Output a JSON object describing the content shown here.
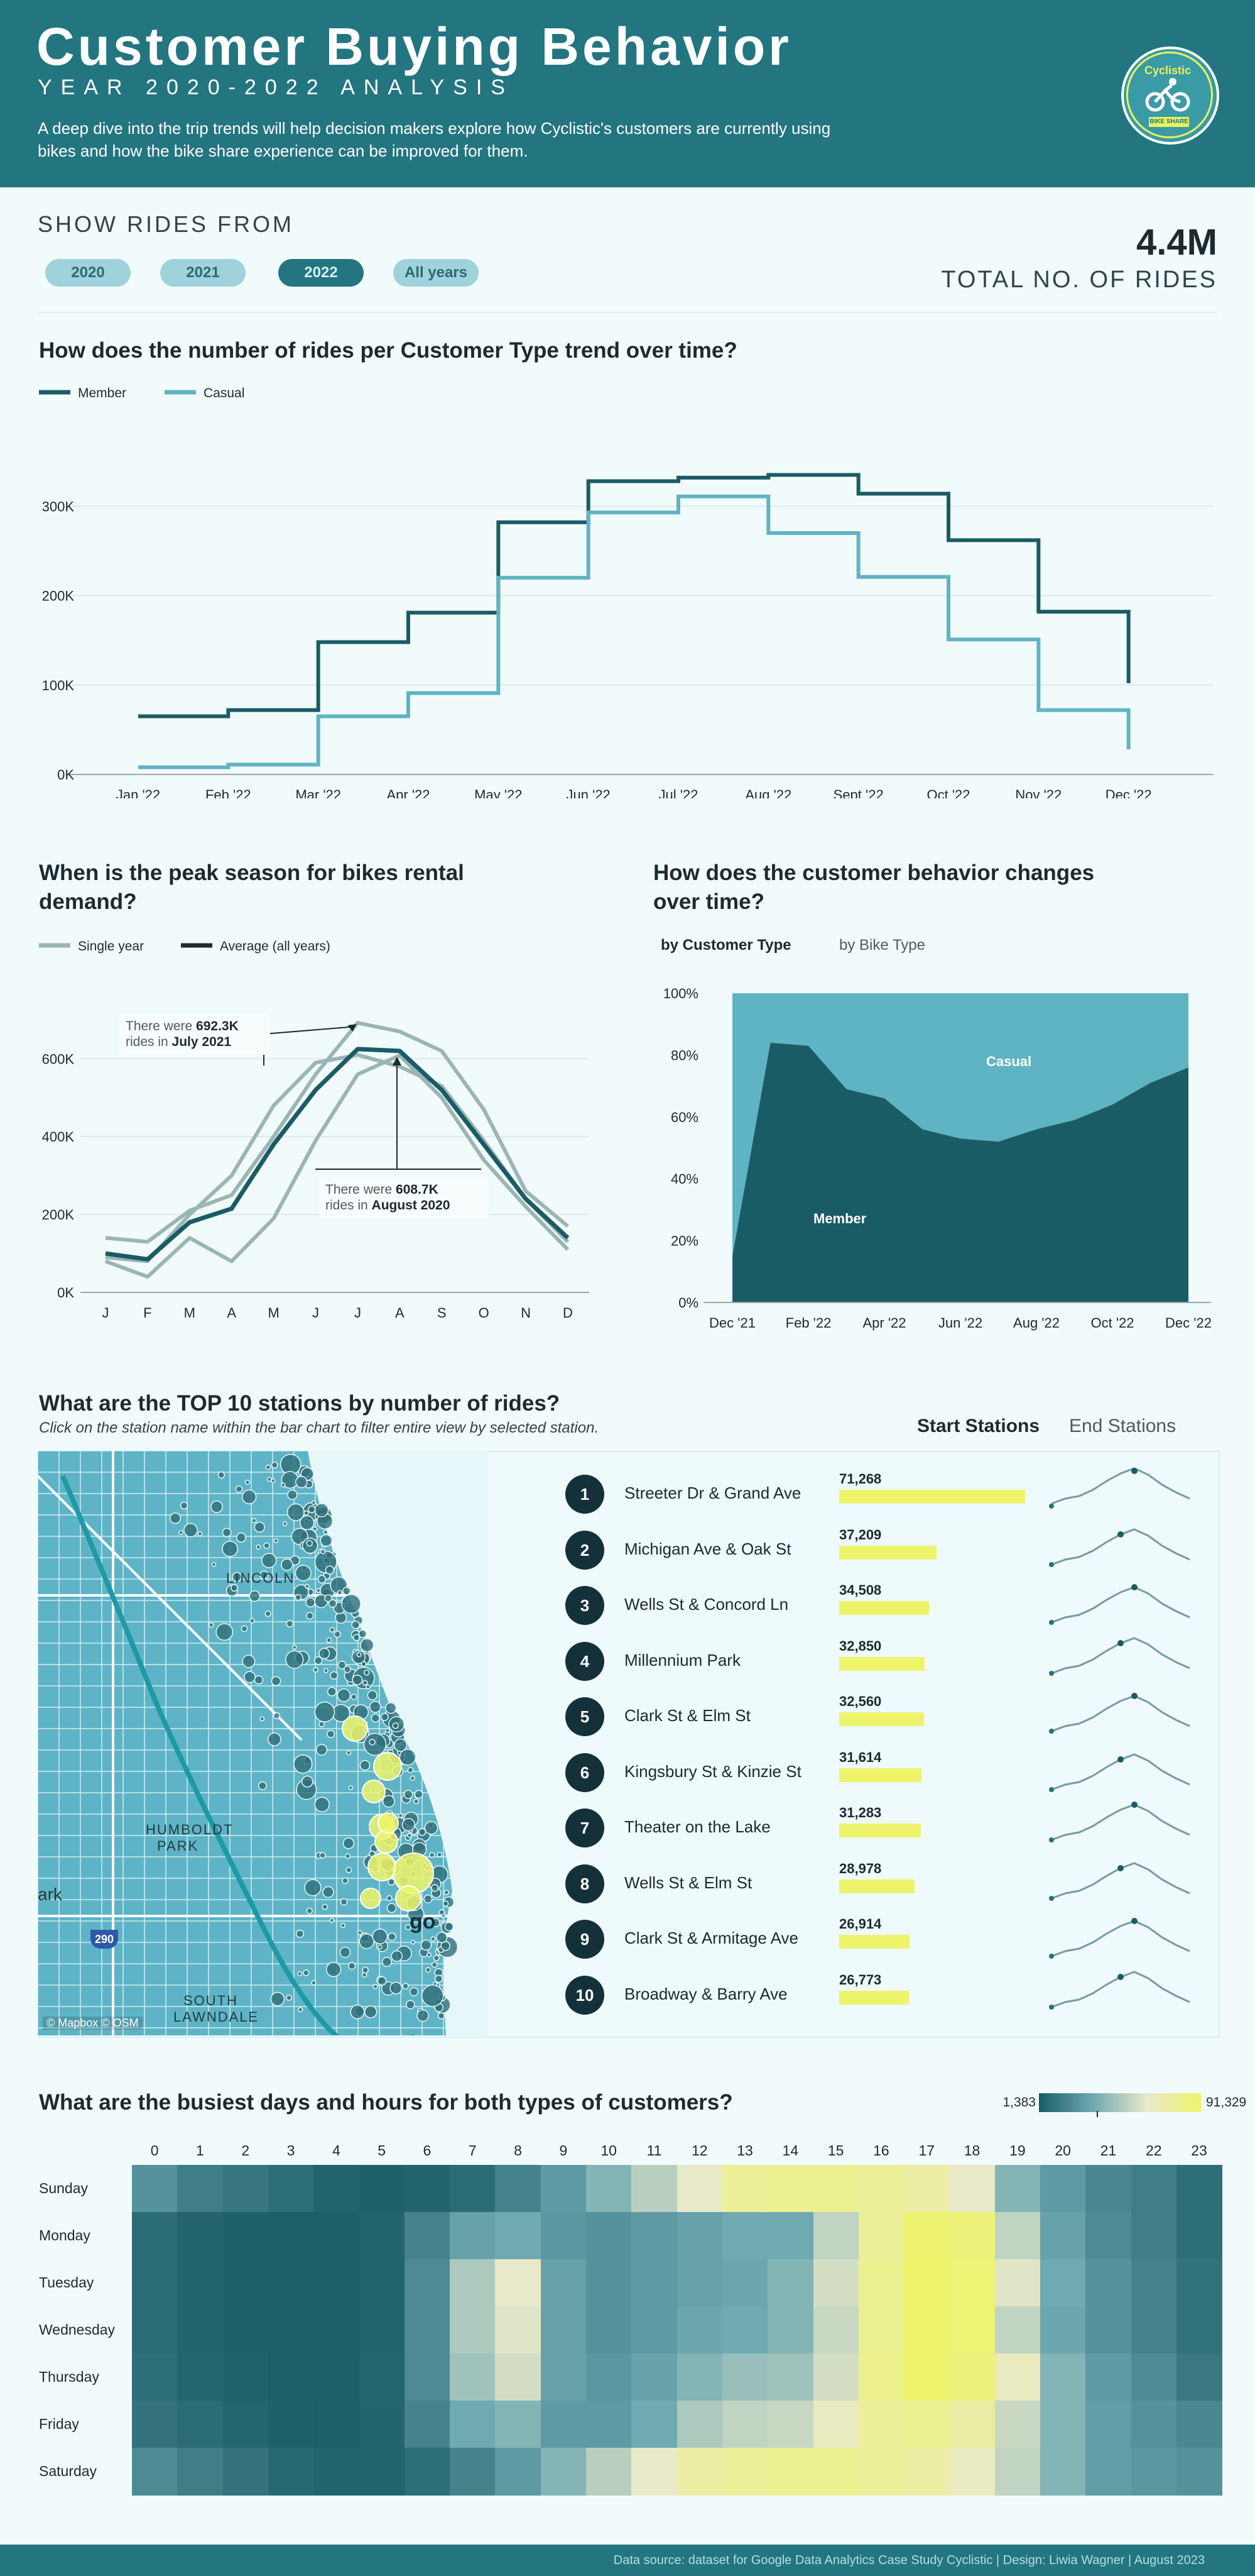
{
  "header": {
    "title": "Customer Buying Behavior",
    "subtitle": "YEAR 2020-2022 ANALYSIS",
    "description": "A deep dive into the trip trends will help decision makers explore how Cyclistic's customers are currently using bikes and how the bike share experience can be improved for them.",
    "logo_text": "Cyclistic",
    "logo_tag": "BIKE SHARE"
  },
  "filters": {
    "label": "SHOW RIDES FROM",
    "options": [
      {
        "label": "2020",
        "active": false
      },
      {
        "label": "2021",
        "active": false
      },
      {
        "label": "2022",
        "active": true
      },
      {
        "label": "All years",
        "active": false
      }
    ]
  },
  "kpi": {
    "value": "4.4M",
    "label": "TOTAL NO. OF RIDES"
  },
  "trend": {
    "title": "How does the number of rides per Customer Type trend over time?"
  },
  "peak": {
    "title_line1": "When is the peak season for bikes rental",
    "title_line2": "demand?",
    "ann1_pre": "There were ",
    "ann1_val": "692.3K",
    "ann1_mid": "rides in ",
    "ann1_month": "July 2021",
    "ann2_pre": "There were ",
    "ann2_val": "608.7K",
    "ann2_mid": "rides in ",
    "ann2_month": "August 2020"
  },
  "behavior": {
    "title_line1": "How does the customer behavior changes",
    "title_line2": "over time?",
    "tabs": [
      {
        "label": "by Customer Type",
        "active": true
      },
      {
        "label": "by Bike Type",
        "active": false
      }
    ]
  },
  "stations": {
    "title": "What are the TOP 10 stations by number of rides?",
    "subtitle": "Click on the station name within the bar chart to filter entire view by selected station.",
    "tabs": [
      {
        "label": "Start Stations",
        "active": true
      },
      {
        "label": "End Stations",
        "active": false
      }
    ],
    "map_credit": "© Mapbox © OSM",
    "map_labels": [
      "LINCOLN",
      "HUMBOLDT",
      "PARK",
      "ark",
      "go",
      "SOUTH",
      "LAWNDALE",
      "290"
    ],
    "rows": [
      {
        "rank": "1",
        "name": "Streeter Dr & Grand Ave",
        "value_label": "71,268",
        "value": 71268
      },
      {
        "rank": "2",
        "name": "Michigan Ave & Oak St",
        "value_label": "37,209",
        "value": 37209
      },
      {
        "rank": "3",
        "name": "Wells St & Concord Ln",
        "value_label": "34,508",
        "value": 34508
      },
      {
        "rank": "4",
        "name": "Millennium Park",
        "value_label": "32,850",
        "value": 32850
      },
      {
        "rank": "5",
        "name": "Clark St & Elm St",
        "value_label": "32,560",
        "value": 32560
      },
      {
        "rank": "6",
        "name": "Kingsbury St & Kinzie St",
        "value_label": "31,614",
        "value": 31614
      },
      {
        "rank": "7",
        "name": "Theater on the Lake",
        "value_label": "31,283",
        "value": 31283
      },
      {
        "rank": "8",
        "name": "Wells St & Elm St",
        "value_label": "28,978",
        "value": 28978
      },
      {
        "rank": "9",
        "name": "Clark St & Armitage Ave",
        "value_label": "26,914",
        "value": 26914
      },
      {
        "rank": "10",
        "name": "Broadway & Barry Ave",
        "value_label": "26,773",
        "value": 26773
      }
    ]
  },
  "heatmap": {
    "title": "What are the busiest days and hours for both types of customers?",
    "legend_min": "1,383",
    "legend_max": "91,329"
  },
  "footer": {
    "text": "Data source: dataset for Google Data Analytics Case Study Cyclistic | Design: Liwia Wagner | August 2023"
  },
  "colors": {
    "member": "#1a5c66",
    "casual": "#5fb4c3",
    "highlight": "#edf46b",
    "header": "#237580"
  },
  "chart_data": [
    {
      "type": "line",
      "id": "trend",
      "categories": [
        "Jan '22",
        "Feb '22",
        "Mar '22",
        "Apr '22",
        "May '22",
        "Jun '22",
        "Jul '22",
        "Aug '22",
        "Sept '22",
        "Oct '22",
        "Nov '22",
        "Dec '22"
      ],
      "series": [
        {
          "name": "Member",
          "values": [
            65000,
            72000,
            148000,
            181000,
            282000,
            328000,
            332000,
            335000,
            314000,
            262000,
            182000,
            102000
          ]
        },
        {
          "name": "Casual",
          "values": [
            8000,
            11000,
            65000,
            91000,
            220000,
            293000,
            311000,
            270000,
            221000,
            151000,
            72000,
            28000
          ]
        }
      ],
      "yticks": [
        "0K",
        "100K",
        "200K",
        "300K"
      ],
      "ylim": [
        0,
        360000
      ],
      "legend": "top-left",
      "step": true
    },
    {
      "type": "line",
      "id": "peak",
      "categories": [
        "J",
        "F",
        "M",
        "A",
        "M",
        "J",
        "J",
        "A",
        "S",
        "O",
        "N",
        "D"
      ],
      "series": [
        {
          "name": "Single year",
          "values": [
            80000,
            40000,
            140000,
            80000,
            190000,
            390000,
            560000,
            608700,
            500000,
            340000,
            220000,
            110000
          ]
        },
        {
          "name": "Single year",
          "values": [
            140000,
            130000,
            210000,
            250000,
            400000,
            560000,
            692300,
            670000,
            620000,
            470000,
            260000,
            170000
          ]
        },
        {
          "name": "Single year",
          "values": [
            90000,
            80000,
            200000,
            300000,
            480000,
            590000,
            610000,
            580000,
            530000,
            390000,
            240000,
            130000
          ]
        },
        {
          "name": "Average (all years)",
          "values": [
            100000,
            85000,
            180000,
            215000,
            380000,
            520000,
            625000,
            620000,
            520000,
            380000,
            240000,
            140000
          ]
        }
      ],
      "yticks": [
        "0K",
        "200K",
        "400K",
        "600K"
      ],
      "ylim": [
        0,
        720000
      ],
      "legend": "top-left"
    },
    {
      "type": "area",
      "id": "behavior",
      "x": [
        "Dec '21",
        "Jan '22",
        "Feb '22",
        "Mar '22",
        "Apr '22",
        "May '22",
        "Jun '22",
        "Jul '22",
        "Aug '22",
        "Sept '22",
        "Oct '22",
        "Nov '22",
        "Dec '22"
      ],
      "xticks": [
        "Dec '21",
        "Feb '22",
        "Apr '22",
        "Jun '22",
        "Aug '22",
        "Oct '22",
        "Dec '22"
      ],
      "series": [
        {
          "name": "Member",
          "values": [
            15,
            84,
            83,
            69,
            66,
            56,
            53,
            52,
            56,
            59,
            64,
            71,
            76
          ]
        },
        {
          "name": "Casual",
          "values": [
            85,
            16,
            17,
            31,
            34,
            44,
            47,
            48,
            44,
            41,
            36,
            29,
            24
          ]
        }
      ],
      "yticks": [
        "0%",
        "20%",
        "40%",
        "60%",
        "80%",
        "100%"
      ],
      "ylim": [
        0,
        100
      ]
    },
    {
      "type": "heatmap",
      "id": "heatmap",
      "x": [
        "0",
        "1",
        "2",
        "3",
        "4",
        "5",
        "6",
        "7",
        "8",
        "9",
        "10",
        "11",
        "12",
        "13",
        "14",
        "15",
        "16",
        "17",
        "18",
        "19",
        "20",
        "21",
        "22",
        "23"
      ],
      "y": [
        "Sunday",
        "Monday",
        "Tuesday",
        "Wednesday",
        "Thursday",
        "Friday",
        "Saturday"
      ],
      "min": 1383,
      "max": 91329,
      "values": [
        [
          0.35,
          0.22,
          0.17,
          0.12,
          0.05,
          0.03,
          0.05,
          0.1,
          0.25,
          0.4,
          0.55,
          0.68,
          0.8,
          0.9,
          0.92,
          0.92,
          0.9,
          0.88,
          0.8,
          0.55,
          0.4,
          0.28,
          0.22,
          0.12
        ],
        [
          0.1,
          0.05,
          0.03,
          0.02,
          0.02,
          0.05,
          0.25,
          0.45,
          0.5,
          0.38,
          0.35,
          0.4,
          0.45,
          0.5,
          0.5,
          0.7,
          0.9,
          0.99,
          0.97,
          0.7,
          0.45,
          0.3,
          0.22,
          0.12
        ],
        [
          0.1,
          0.05,
          0.03,
          0.02,
          0.02,
          0.05,
          0.3,
          0.65,
          0.8,
          0.45,
          0.35,
          0.4,
          0.45,
          0.48,
          0.55,
          0.75,
          0.92,
          1.0,
          0.98,
          0.78,
          0.5,
          0.35,
          0.25,
          0.14
        ],
        [
          0.1,
          0.05,
          0.03,
          0.02,
          0.02,
          0.05,
          0.3,
          0.65,
          0.78,
          0.45,
          0.35,
          0.4,
          0.48,
          0.5,
          0.55,
          0.72,
          0.92,
          1.0,
          0.98,
          0.7,
          0.48,
          0.35,
          0.25,
          0.14
        ],
        [
          0.12,
          0.06,
          0.04,
          0.02,
          0.02,
          0.06,
          0.3,
          0.62,
          0.75,
          0.45,
          0.38,
          0.45,
          0.55,
          0.6,
          0.62,
          0.75,
          0.93,
          1.0,
          0.97,
          0.82,
          0.55,
          0.4,
          0.3,
          0.18
        ],
        [
          0.15,
          0.1,
          0.06,
          0.03,
          0.02,
          0.05,
          0.25,
          0.5,
          0.55,
          0.4,
          0.4,
          0.5,
          0.65,
          0.7,
          0.72,
          0.82,
          0.9,
          0.92,
          0.88,
          0.72,
          0.55,
          0.42,
          0.35,
          0.28
        ],
        [
          0.3,
          0.22,
          0.15,
          0.08,
          0.05,
          0.05,
          0.12,
          0.25,
          0.4,
          0.55,
          0.68,
          0.8,
          0.88,
          0.9,
          0.92,
          0.92,
          0.9,
          0.88,
          0.82,
          0.7,
          0.55,
          0.42,
          0.38,
          0.35
        ]
      ]
    }
  ]
}
